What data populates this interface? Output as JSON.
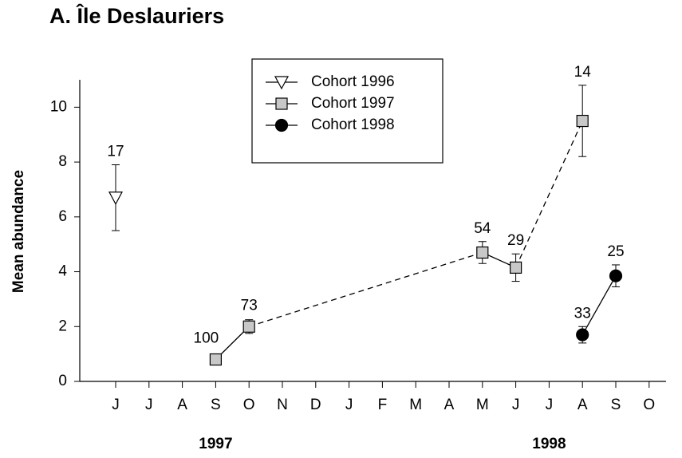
{
  "chart_data": {
    "type": "line",
    "title": "A. Île Deslauriers",
    "y_label": "Mean abundance",
    "categories": [
      "J",
      "J",
      "A",
      "S",
      "O",
      "N",
      "D",
      "J",
      "F",
      "M",
      "A",
      "M",
      "J",
      "J",
      "A",
      "S",
      "O"
    ],
    "year_labels": [
      {
        "label": "1997",
        "category_index": 3
      },
      {
        "label": "1998",
        "category_index": 13
      }
    ],
    "ylim": [
      0,
      11
    ],
    "yticks": [
      0,
      2,
      4,
      6,
      8,
      10
    ],
    "series": [
      {
        "name": "Cohort 1996",
        "marker": "triangle-down",
        "color": "#ffffff",
        "values": [
          6.7,
          null,
          null,
          null,
          null,
          null,
          null,
          null,
          null,
          null,
          null,
          null,
          null,
          null,
          null,
          null,
          null
        ],
        "errors": [
          1.2,
          null,
          null,
          null,
          null,
          null,
          null,
          null,
          null,
          null,
          null,
          null,
          null,
          null,
          null,
          null,
          null
        ],
        "n_labels": [
          17,
          null,
          null,
          null,
          null,
          null,
          null,
          null,
          null,
          null,
          null,
          null,
          null,
          null,
          null,
          null,
          null
        ]
      },
      {
        "name": "Cohort 1997",
        "marker": "square",
        "color": "#c8c8c8",
        "dashed_gaps": true,
        "values": [
          null,
          null,
          null,
          0.8,
          2.0,
          null,
          null,
          null,
          null,
          null,
          null,
          4.7,
          4.15,
          null,
          9.5,
          null,
          null
        ],
        "errors": [
          null,
          null,
          null,
          0.05,
          0.25,
          null,
          null,
          null,
          null,
          null,
          null,
          0.4,
          0.5,
          null,
          1.3,
          null,
          null
        ],
        "n_labels": [
          null,
          null,
          null,
          100,
          73,
          null,
          null,
          null,
          null,
          null,
          null,
          54,
          29,
          null,
          14,
          null,
          null
        ]
      },
      {
        "name": "Cohort 1998",
        "marker": "circle",
        "color": "#000000",
        "values": [
          null,
          null,
          null,
          null,
          null,
          null,
          null,
          null,
          null,
          null,
          null,
          null,
          null,
          null,
          1.7,
          3.85,
          null
        ],
        "errors": [
          null,
          null,
          null,
          null,
          null,
          null,
          null,
          null,
          null,
          null,
          null,
          null,
          null,
          null,
          0.3,
          0.4,
          null
        ],
        "n_labels": [
          null,
          null,
          null,
          null,
          null,
          null,
          null,
          null,
          null,
          null,
          null,
          null,
          null,
          null,
          33,
          25,
          null
        ]
      }
    ]
  }
}
